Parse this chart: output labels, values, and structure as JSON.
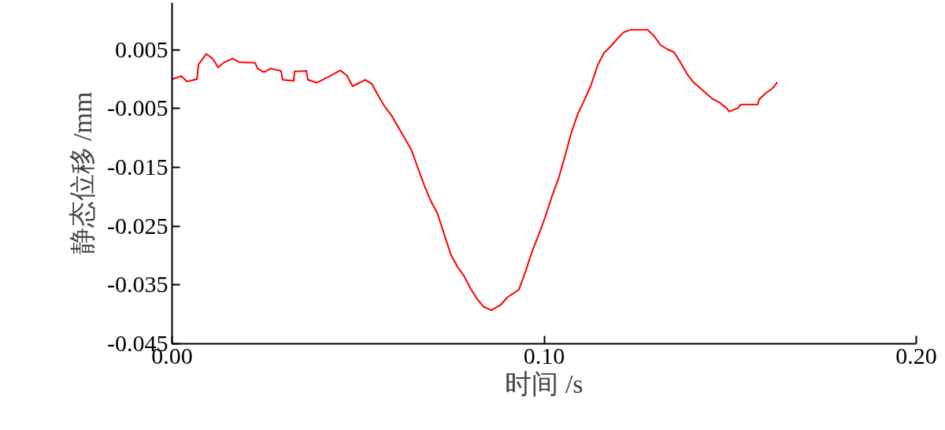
{
  "chart_data": {
    "type": "line",
    "xlabel": "时间 /s",
    "ylabel": "静态位移 /mm",
    "xlim": [
      0,
      0.2
    ],
    "ylim": [
      -0.045,
      0.013
    ],
    "xticks": [
      {
        "value": 0,
        "label": "0.00"
      },
      {
        "value": 0.1,
        "label": "0.10"
      },
      {
        "value": 0.2,
        "label": "0.20"
      }
    ],
    "yticks": [
      0.005,
      -0.005,
      -0.015,
      -0.025,
      -0.035,
      -0.045
    ],
    "grid": false,
    "marker": "none",
    "line_style": "solid",
    "series": [
      {
        "color": "#ff0000",
        "x": [
          0,
          0.0025,
          0.004,
          0.0067,
          0.0071,
          0.0092,
          0.0109,
          0.0124,
          0.0138,
          0.0163,
          0.018,
          0.0223,
          0.023,
          0.0247,
          0.0265,
          0.0293,
          0.0297,
          0.0327,
          0.0329,
          0.0361,
          0.0365,
          0.0389,
          0.042,
          0.0452,
          0.047,
          0.0485,
          0.0519,
          0.0537,
          0.0555,
          0.0572,
          0.059,
          0.0608,
          0.0625,
          0.0643,
          0.066,
          0.0678,
          0.0696,
          0.0713,
          0.0731,
          0.0749,
          0.0766,
          0.0784,
          0.0802,
          0.0819,
          0.0837,
          0.0858,
          0.0883,
          0.0901,
          0.0932,
          0.095,
          0.0967,
          0.0985,
          0.1003,
          0.102,
          0.1038,
          0.1055,
          0.1073,
          0.1091,
          0.1108,
          0.1126,
          0.1144,
          0.1161,
          0.1179,
          0.1197,
          0.1214,
          0.1232,
          0.1278,
          0.1296,
          0.1313,
          0.1331,
          0.1349,
          0.1366,
          0.1384,
          0.1401,
          0.1419,
          0.1437,
          0.1454,
          0.1472,
          0.149,
          0.1497,
          0.1521,
          0.1528,
          0.1574,
          0.1578,
          0.1595,
          0.1613,
          0.1627
        ],
        "values": [
          0,
          0.0005,
          -0.0004,
          0,
          0.0025,
          0.0043,
          0.0035,
          0.002,
          0.0028,
          0.0035,
          0.0029,
          0.0028,
          0.0018,
          0.0012,
          0.0018,
          0.0014,
          -0.0001,
          -0.0003,
          0.0013,
          0.0014,
          -0.0001,
          -0.0006,
          0.0004,
          0.0015,
          0.0006,
          -0.0012,
          -0.0001,
          -0.0008,
          -0.0029,
          -0.0047,
          -0.0062,
          -0.0082,
          -0.01,
          -0.012,
          -0.015,
          -0.0181,
          -0.0208,
          -0.0228,
          -0.0263,
          -0.0298,
          -0.0318,
          -0.0334,
          -0.0356,
          -0.0373,
          -0.0387,
          -0.0393,
          -0.0384,
          -0.0371,
          -0.0358,
          -0.0327,
          -0.0294,
          -0.0265,
          -0.0234,
          -0.0201,
          -0.017,
          -0.0133,
          -0.0091,
          -0.0058,
          -0.0036,
          -0.001,
          0.0024,
          0.0045,
          0.0056,
          0.0069,
          0.008,
          0.0084,
          0.0084,
          0.0073,
          0.0058,
          0.0051,
          0.0046,
          0.0029,
          0.0009,
          -0.0005,
          -0.0015,
          -0.0025,
          -0.0034,
          -0.004,
          -0.0049,
          -0.0055,
          -0.0049,
          -0.0043,
          -0.0043,
          -0.0034,
          -0.0024,
          -0.0016,
          -0.0005
        ]
      }
    ]
  }
}
